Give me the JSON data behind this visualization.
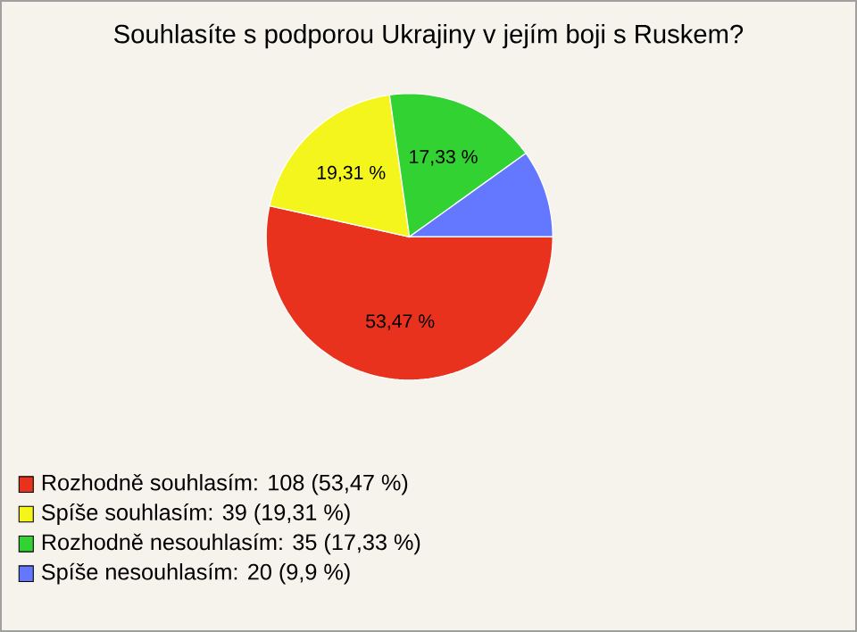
{
  "chart_data": {
    "type": "pie",
    "title": "Souhlasíte s podporou Ukrajiny v jejím boji s Ruskem?",
    "categories": [
      "Rozhodně souhlasím: 108 (53,47 %)",
      "Spíše souhlasím: 39 (19,31 %)",
      "Rozhodně nesouhlasím: 35 (17,33 %)",
      "Spíše nesouhlasím: 20 (9,9 %)"
    ],
    "values": [
      53.47,
      19.31,
      17.33,
      9.9
    ],
    "colors": [
      "#e8321e",
      "#f5f51e",
      "#32d232",
      "#6478ff"
    ],
    "value_labels": [
      "53,47 %",
      "19,31 %",
      "17,33 %",
      null
    ],
    "legend": "bottom left"
  }
}
